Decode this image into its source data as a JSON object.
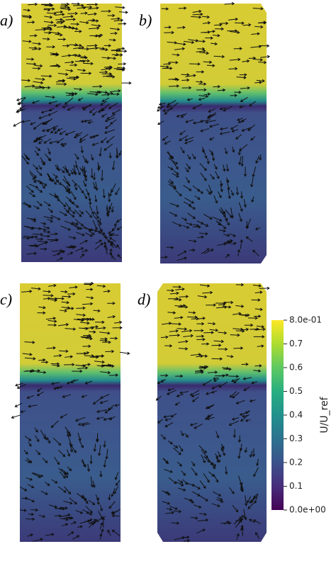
{
  "panels": [
    {
      "label": "a)"
    },
    {
      "label": "b)"
    },
    {
      "label": "c)"
    },
    {
      "label": "d)"
    }
  ],
  "colorbar": {
    "title": "U/U_ref",
    "range": [
      0,
      0.8
    ],
    "ticks": [
      {
        "value": 0.8,
        "label": "8.0e-01"
      },
      0.7,
      0.6,
      0.5,
      0.4,
      0.3,
      0.2,
      0.1,
      {
        "value": 0,
        "label": "0.0e+00"
      }
    ]
  }
}
